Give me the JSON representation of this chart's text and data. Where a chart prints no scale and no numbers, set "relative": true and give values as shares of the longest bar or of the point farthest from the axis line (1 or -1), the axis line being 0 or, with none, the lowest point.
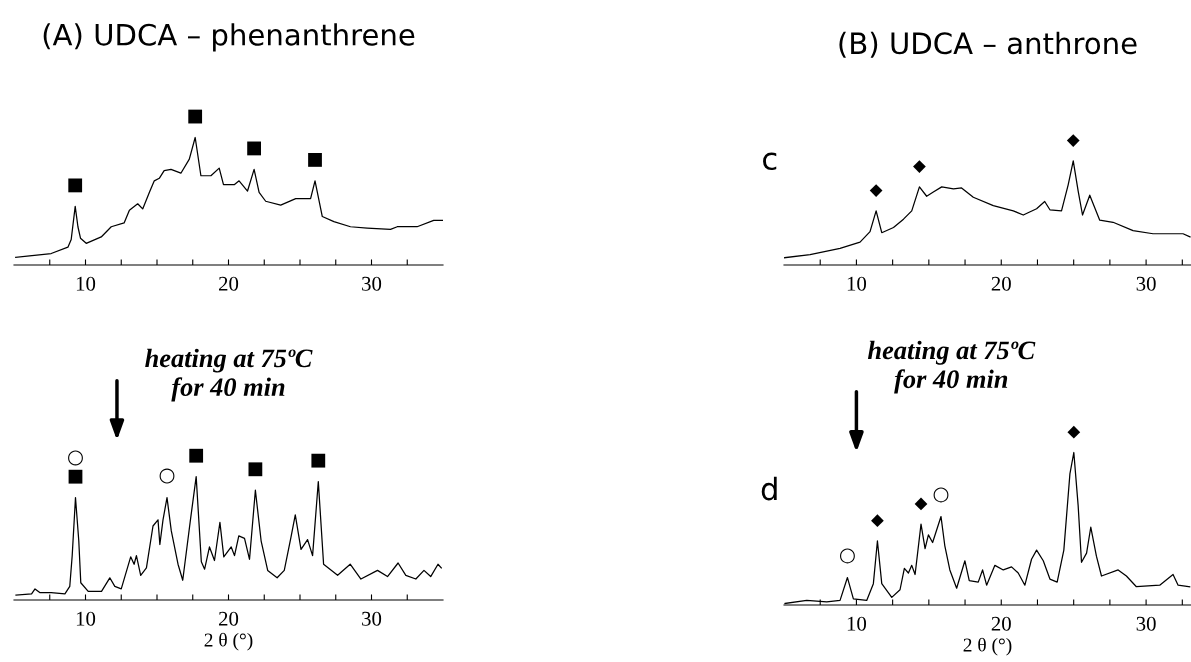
{
  "chart_data": [
    {
      "type": "line",
      "title": "(A) UDCA – phenanthrene",
      "relative": true,
      "tick_labels": "x",
      "grid": false,
      "xlim": [
        5,
        35
      ],
      "xticks": [
        {
          "value": 7.5,
          "label": null
        },
        10,
        {
          "value": 12.5,
          "label": null
        },
        {
          "value": 15,
          "label": null
        },
        {
          "value": 17.5,
          "label": null
        },
        20,
        {
          "value": 22.5,
          "label": null
        },
        {
          "value": 25,
          "label": null
        },
        {
          "value": 27.5,
          "label": null
        },
        30,
        {
          "value": 32.5,
          "label": null
        }
      ],
      "series": [
        {
          "color": "#000000",
          "x": [
            5.12,
            7.6,
            8.77,
            9.0,
            9.28,
            9.47,
            9.65,
            10.05,
            11.1,
            11.8,
            12.7,
            13.07,
            13.65,
            14.0,
            14.47,
            14.81,
            15.16,
            15.5,
            15.98,
            16.67,
            17.26,
            17.67,
            18.07,
            18.77,
            19.35,
            19.65,
            20.4,
            20.74,
            21.33,
            21.79,
            22.14,
            22.6,
            23.65,
            24.7,
            25.74,
            26.05,
            26.56,
            27.37,
            28.53,
            29.7,
            31.33,
            31.8,
            33.19,
            34.35,
            35.0
          ],
          "values": [
            0.06,
            0.09,
            0.14,
            0.2,
            0.46,
            0.3,
            0.21,
            0.17,
            0.22,
            0.3,
            0.33,
            0.43,
            0.48,
            0.44,
            0.57,
            0.66,
            0.68,
            0.74,
            0.75,
            0.72,
            0.83,
            1.0,
            0.7,
            0.7,
            0.76,
            0.63,
            0.63,
            0.66,
            0.58,
            0.75,
            0.57,
            0.5,
            0.47,
            0.52,
            0.52,
            0.66,
            0.38,
            0.34,
            0.3,
            0.29,
            0.28,
            0.3,
            0.3,
            0.35,
            0.35
          ]
        }
      ],
      "annotations": [
        {
          "text": "■",
          "x": 9.28,
          "y": 0.46
        },
        {
          "text": "■",
          "x": 17.67,
          "y": 1.0
        },
        {
          "text": "■",
          "x": 21.79,
          "y": 0.75
        },
        {
          "text": "■",
          "x": 26.05,
          "y": 0.66
        }
      ]
    },
    {
      "type": "line",
      "xlabel": "2 θ (°)",
      "relative": true,
      "tick_labels": "x",
      "grid": false,
      "xlim": [
        5,
        35
      ],
      "xticks": [
        {
          "value": 7.5,
          "label": null
        },
        10,
        {
          "value": 12.5,
          "label": null
        },
        {
          "value": 15,
          "label": null
        },
        {
          "value": 17.5,
          "label": null
        },
        20,
        {
          "value": 22.5,
          "label": null
        },
        {
          "value": 25,
          "label": null
        },
        {
          "value": 27.5,
          "label": null
        },
        30,
        {
          "value": 32.5,
          "label": null
        }
      ],
      "series": [
        {
          "color": "#000000",
          "x": [
            5.14,
            6.23,
            6.47,
            6.8,
            7.6,
            8.56,
            8.9,
            9.07,
            9.3,
            9.53,
            9.67,
            10.19,
            11.12,
            11.7,
            12.05,
            12.5,
            13.16,
            13.4,
            13.56,
            13.86,
            14.26,
            14.72,
            15.07,
            15.2,
            15.42,
            15.7,
            16.0,
            16.47,
            16.8,
            17.35,
            17.74,
            18.1,
            18.33,
            18.67,
            19.02,
            19.4,
            19.67,
            20.19,
            20.42,
            20.72,
            21.12,
            21.47,
            21.88,
            22.28,
            22.74,
            23.4,
            23.9,
            24.37,
            24.67,
            25.07,
            25.53,
            25.88,
            26.28,
            26.65,
            27.63,
            28.51,
            29.26,
            30.42,
            31.12,
            31.86,
            32.4,
            33.1,
            33.67,
            34.14,
            34.65,
            34.88
          ],
          "values": [
            0.04,
            0.05,
            0.09,
            0.06,
            0.06,
            0.05,
            0.11,
            0.36,
            0.83,
            0.48,
            0.14,
            0.07,
            0.07,
            0.18,
            0.11,
            0.09,
            0.35,
            0.29,
            0.36,
            0.2,
            0.26,
            0.6,
            0.65,
            0.45,
            0.65,
            0.83,
            0.56,
            0.29,
            0.16,
            0.66,
            1.0,
            0.31,
            0.25,
            0.43,
            0.32,
            0.63,
            0.35,
            0.43,
            0.36,
            0.52,
            0.5,
            0.33,
            0.89,
            0.48,
            0.24,
            0.18,
            0.24,
            0.51,
            0.69,
            0.41,
            0.49,
            0.36,
            0.96,
            0.29,
            0.2,
            0.29,
            0.17,
            0.24,
            0.19,
            0.3,
            0.2,
            0.17,
            0.24,
            0.19,
            0.29,
            0.26
          ]
        }
      ],
      "annotations": [
        "heating at 75ºC\nfor 40 min",
        {
          "text": "■",
          "x": 9.3,
          "y": 0.83
        },
        {
          "text": "○",
          "x": 9.3,
          "y": 0.83
        },
        {
          "text": "○",
          "x": 15.7,
          "y": 0.83
        },
        {
          "text": "■",
          "x": 17.74,
          "y": 1.0
        },
        {
          "text": "■",
          "x": 21.88,
          "y": 0.89
        },
        {
          "text": "■",
          "x": 26.28,
          "y": 0.96
        }
      ]
    },
    {
      "type": "line",
      "title": "(B) UDCA – anthrone",
      "relative": true,
      "tick_labels": "x",
      "grid": false,
      "xlim": [
        5,
        33.1
      ],
      "xticks": [
        {
          "value": 7.5,
          "label": null
        },
        10,
        {
          "value": 12.5,
          "label": null
        },
        {
          "value": 15,
          "label": null
        },
        {
          "value": 17.5,
          "label": null
        },
        20,
        {
          "value": 22.5,
          "label": null
        },
        {
          "value": 25,
          "label": null
        },
        {
          "value": 27.5,
          "label": null
        },
        30,
        {
          "value": 32.5,
          "label": null
        }
      ],
      "series": [
        {
          "color": "#000000",
          "x": [
            5.03,
            6.8,
            8.87,
            10.25,
            10.94,
            11.36,
            11.75,
            12.56,
            13.25,
            13.82,
            14.35,
            14.85,
            15.31,
            15.89,
            16.7,
            17.26,
            18.07,
            19.45,
            20.83,
            21.52,
            22.44,
            23.0,
            23.36,
            24.16,
            24.62,
            24.97,
            25.31,
            25.61,
            26.11,
            26.8,
            27.72,
            29.1,
            30.48,
            31.63,
            32.55,
            33.03
          ],
          "values": [
            0.07,
            0.1,
            0.16,
            0.22,
            0.32,
            0.52,
            0.31,
            0.36,
            0.44,
            0.52,
            0.75,
            0.66,
            0.7,
            0.75,
            0.73,
            0.74,
            0.65,
            0.57,
            0.52,
            0.48,
            0.54,
            0.61,
            0.53,
            0.52,
            0.77,
            1.0,
            0.71,
            0.48,
            0.67,
            0.43,
            0.41,
            0.33,
            0.3,
            0.3,
            0.3,
            0.27
          ]
        }
      ],
      "annotations": [
        "c",
        {
          "text": "◆",
          "x": 11.36,
          "y": 0.52
        },
        {
          "text": "◆",
          "x": 14.35,
          "y": 0.75
        },
        {
          "text": "◆",
          "x": 24.97,
          "y": 1.0
        }
      ]
    },
    {
      "type": "line",
      "xlabel": "2 θ (°)",
      "relative": true,
      "tick_labels": "x",
      "grid": false,
      "xlim": [
        5,
        33.1
      ],
      "xticks": [
        {
          "value": 7.5,
          "label": null
        },
        10,
        {
          "value": 12.5,
          "label": null
        },
        {
          "value": 15,
          "label": null
        },
        {
          "value": 17.5,
          "label": null
        },
        20,
        {
          "value": 22.5,
          "label": null
        },
        {
          "value": 25,
          "label": null
        },
        {
          "value": 27.5,
          "label": null
        },
        30,
        {
          "value": 32.5,
          "label": null
        }
      ],
      "series": [
        {
          "color": "#000000",
          "x": [
            5.07,
            6.57,
            7.95,
            8.87,
            9.38,
            9.79,
            10.71,
            11.17,
            11.45,
            11.75,
            12.44,
            13.01,
            13.31,
            13.59,
            13.82,
            14.05,
            14.46,
            14.74,
            14.97,
            15.26,
            15.84,
            16.1,
            16.45,
            16.92,
            17.49,
            17.79,
            18.41,
            18.71,
            18.99,
            19.56,
            20.14,
            20.71,
            21.17,
            21.63,
            22.09,
            22.44,
            22.9,
            23.36,
            23.86,
            24.32,
            24.74,
            25.01,
            25.31,
            25.54,
            25.89,
            26.18,
            26.57,
            26.92,
            28.07,
            28.64,
            29.33,
            30.94,
            31.86,
            32.21,
            33.01
          ],
          "values": [
            0.01,
            0.03,
            0.02,
            0.03,
            0.18,
            0.04,
            0.03,
            0.14,
            0.42,
            0.14,
            0.05,
            0.1,
            0.24,
            0.21,
            0.26,
            0.2,
            0.53,
            0.37,
            0.46,
            0.41,
            0.58,
            0.39,
            0.23,
            0.11,
            0.29,
            0.16,
            0.15,
            0.23,
            0.13,
            0.26,
            0.23,
            0.25,
            0.21,
            0.13,
            0.3,
            0.36,
            0.29,
            0.17,
            0.15,
            0.36,
            0.86,
            1.0,
            0.65,
            0.28,
            0.34,
            0.51,
            0.32,
            0.19,
            0.23,
            0.19,
            0.12,
            0.13,
            0.2,
            0.13,
            0.12
          ]
        }
      ],
      "annotations": [
        "heating at 75ºC\nfor 40 min",
        "d",
        {
          "text": "○",
          "x": 9.38,
          "y": 0.18
        },
        {
          "text": "◆",
          "x": 11.45,
          "y": 0.42
        },
        {
          "text": "◆",
          "x": 14.46,
          "y": 0.53
        },
        {
          "text": "○",
          "x": 15.84,
          "y": 0.58
        },
        {
          "text": "◆",
          "x": 25.01,
          "y": 1.0
        }
      ]
    }
  ]
}
